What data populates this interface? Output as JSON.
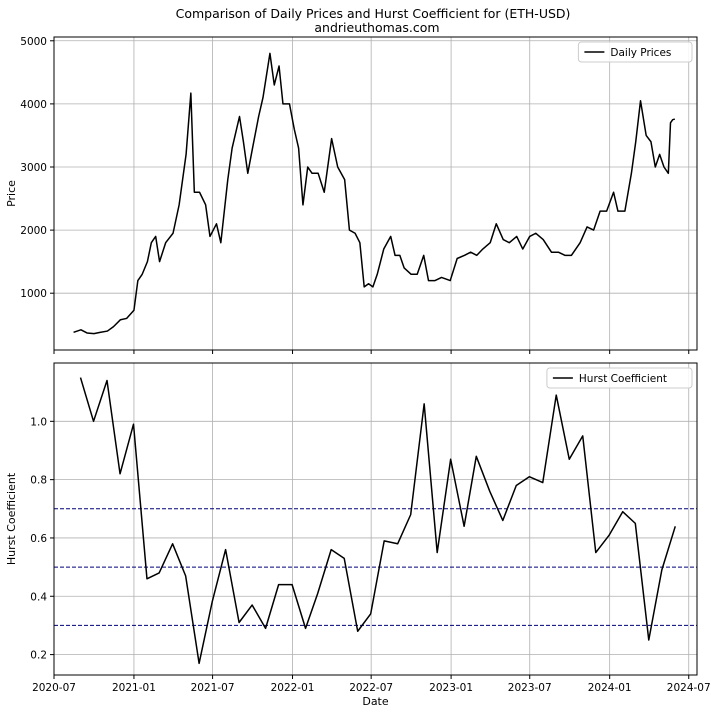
{
  "figure": {
    "title_line1": "Comparison of Daily Prices and Hurst Coefficient for (ETH-USD)",
    "title_line2": "andrieuthomas.com"
  },
  "chart_data": [
    {
      "type": "line",
      "ylabel": "Price",
      "ylim": [
        100,
        5060
      ],
      "yticks": [
        1000,
        2000,
        3000,
        4000,
        5000
      ],
      "xlim": [
        "2020-07-01",
        "2024-07-20"
      ],
      "grid": true,
      "legend_position": "top-right",
      "series": [
        {
          "name": "Daily Prices",
          "color": "#000000",
          "points": [
            [
              "2020-08-15",
              380
            ],
            [
              "2020-09-01",
              420
            ],
            [
              "2020-09-15",
              370
            ],
            [
              "2020-10-01",
              360
            ],
            [
              "2020-10-15",
              380
            ],
            [
              "2020-11-01",
              400
            ],
            [
              "2020-11-15",
              470
            ],
            [
              "2020-12-01",
              580
            ],
            [
              "2020-12-15",
              600
            ],
            [
              "2021-01-01",
              730
            ],
            [
              "2021-01-10",
              1200
            ],
            [
              "2021-01-20",
              1300
            ],
            [
              "2021-02-01",
              1500
            ],
            [
              "2021-02-10",
              1800
            ],
            [
              "2021-02-20",
              1900
            ],
            [
              "2021-03-01",
              1500
            ],
            [
              "2021-03-15",
              1800
            ],
            [
              "2021-04-01",
              1950
            ],
            [
              "2021-04-15",
              2400
            ],
            [
              "2021-05-01",
              3200
            ],
            [
              "2021-05-12",
              4170
            ],
            [
              "2021-05-20",
              2600
            ],
            [
              "2021-06-01",
              2600
            ],
            [
              "2021-06-15",
              2400
            ],
            [
              "2021-06-25",
              1900
            ],
            [
              "2021-07-10",
              2100
            ],
            [
              "2021-07-20",
              1800
            ],
            [
              "2021-08-05",
              2800
            ],
            [
              "2021-08-15",
              3300
            ],
            [
              "2021-09-01",
              3800
            ],
            [
              "2021-09-10",
              3400
            ],
            [
              "2021-09-20",
              2900
            ],
            [
              "2021-10-01",
              3300
            ],
            [
              "2021-10-15",
              3800
            ],
            [
              "2021-10-25",
              4100
            ],
            [
              "2021-11-10",
              4800
            ],
            [
              "2021-11-20",
              4300
            ],
            [
              "2021-12-01",
              4600
            ],
            [
              "2021-12-10",
              4000
            ],
            [
              "2021-12-25",
              4000
            ],
            [
              "2022-01-05",
              3600
            ],
            [
              "2022-01-15",
              3300
            ],
            [
              "2022-01-25",
              2400
            ],
            [
              "2022-02-05",
              3000
            ],
            [
              "2022-02-15",
              2900
            ],
            [
              "2022-03-01",
              2900
            ],
            [
              "2022-03-15",
              2600
            ],
            [
              "2022-04-01",
              3450
            ],
            [
              "2022-04-15",
              3000
            ],
            [
              "2022-05-01",
              2800
            ],
            [
              "2022-05-12",
              2000
            ],
            [
              "2022-05-25",
              1950
            ],
            [
              "2022-06-05",
              1800
            ],
            [
              "2022-06-15",
              1100
            ],
            [
              "2022-06-25",
              1150
            ],
            [
              "2022-07-05",
              1100
            ],
            [
              "2022-07-15",
              1300
            ],
            [
              "2022-07-30",
              1700
            ],
            [
              "2022-08-15",
              1900
            ],
            [
              "2022-08-25",
              1600
            ],
            [
              "2022-09-05",
              1600
            ],
            [
              "2022-09-15",
              1400
            ],
            [
              "2022-10-01",
              1300
            ],
            [
              "2022-10-15",
              1300
            ],
            [
              "2022-10-30",
              1600
            ],
            [
              "2022-11-10",
              1200
            ],
            [
              "2022-11-25",
              1200
            ],
            [
              "2022-12-10",
              1250
            ],
            [
              "2022-12-30",
              1200
            ],
            [
              "2023-01-15",
              1550
            ],
            [
              "2023-02-01",
              1600
            ],
            [
              "2023-02-15",
              1650
            ],
            [
              "2023-03-01",
              1600
            ],
            [
              "2023-03-15",
              1700
            ],
            [
              "2023-04-01",
              1800
            ],
            [
              "2023-04-15",
              2100
            ],
            [
              "2023-05-01",
              1850
            ],
            [
              "2023-05-15",
              1800
            ],
            [
              "2023-06-01",
              1900
            ],
            [
              "2023-06-15",
              1700
            ],
            [
              "2023-07-01",
              1900
            ],
            [
              "2023-07-15",
              1950
            ],
            [
              "2023-08-01",
              1850
            ],
            [
              "2023-08-20",
              1650
            ],
            [
              "2023-09-05",
              1650
            ],
            [
              "2023-09-20",
              1600
            ],
            [
              "2023-10-05",
              1600
            ],
            [
              "2023-10-25",
              1800
            ],
            [
              "2023-11-10",
              2050
            ],
            [
              "2023-11-25",
              2000
            ],
            [
              "2023-12-10",
              2300
            ],
            [
              "2023-12-25",
              2300
            ],
            [
              "2024-01-10",
              2600
            ],
            [
              "2024-01-20",
              2300
            ],
            [
              "2024-02-05",
              2300
            ],
            [
              "2024-02-20",
              2900
            ],
            [
              "2024-03-01",
              3400
            ],
            [
              "2024-03-12",
              4050
            ],
            [
              "2024-03-25",
              3500
            ],
            [
              "2024-04-05",
              3400
            ],
            [
              "2024-04-15",
              3000
            ],
            [
              "2024-04-25",
              3200
            ],
            [
              "2024-05-05",
              3000
            ],
            [
              "2024-05-15",
              2900
            ],
            [
              "2024-05-20",
              3700
            ],
            [
              "2024-05-25",
              3750
            ],
            [
              "2024-05-30",
              3760
            ]
          ]
        }
      ]
    },
    {
      "type": "line",
      "xlabel": "Date",
      "ylabel": "Hurst Coefficient",
      "ylim": [
        0.13,
        1.2
      ],
      "yticks": [
        0.2,
        0.4,
        0.6,
        0.8,
        1.0
      ],
      "xlim": [
        "2020-07-01",
        "2024-07-20"
      ],
      "xticks": [
        [
          "2020-07-01",
          "2020-07"
        ],
        [
          "2021-01-01",
          "2021-01"
        ],
        [
          "2021-07-01",
          "2021-07"
        ],
        [
          "2022-01-01",
          "2022-01"
        ],
        [
          "2022-07-01",
          "2022-07"
        ],
        [
          "2023-01-01",
          "2023-01"
        ],
        [
          "2023-07-01",
          "2023-07"
        ],
        [
          "2024-01-01",
          "2024-01"
        ],
        [
          "2024-07-01",
          "2024-07"
        ]
      ],
      "grid": true,
      "legend_position": "top-right",
      "reference_lines": [
        {
          "y": 0.3,
          "color": "#00007a",
          "style": "dashed"
        },
        {
          "y": 0.5,
          "color": "#00007a",
          "style": "dashed"
        },
        {
          "y": 0.7,
          "color": "#00007a",
          "style": "dashed"
        }
      ],
      "series": [
        {
          "name": "Hurst Coefficient",
          "color": "#000000",
          "points": [
            [
              "2020-08-31",
              1.15
            ],
            [
              "2020-09-30",
              1.0
            ],
            [
              "2020-10-31",
              1.14
            ],
            [
              "2020-11-30",
              0.82
            ],
            [
              "2020-12-31",
              0.99
            ],
            [
              "2021-01-31",
              0.46
            ],
            [
              "2021-02-28",
              0.48
            ],
            [
              "2021-03-31",
              0.58
            ],
            [
              "2021-04-30",
              0.47
            ],
            [
              "2021-05-31",
              0.17
            ],
            [
              "2021-06-30",
              0.38
            ],
            [
              "2021-07-31",
              0.56
            ],
            [
              "2021-08-31",
              0.31
            ],
            [
              "2021-09-30",
              0.37
            ],
            [
              "2021-10-31",
              0.29
            ],
            [
              "2021-11-30",
              0.44
            ],
            [
              "2021-12-31",
              0.44
            ],
            [
              "2022-01-31",
              0.29
            ],
            [
              "2022-02-28",
              0.41
            ],
            [
              "2022-03-31",
              0.56
            ],
            [
              "2022-04-30",
              0.53
            ],
            [
              "2022-05-31",
              0.28
            ],
            [
              "2022-06-30",
              0.34
            ],
            [
              "2022-07-31",
              0.59
            ],
            [
              "2022-08-31",
              0.58
            ],
            [
              "2022-09-30",
              0.68
            ],
            [
              "2022-10-31",
              1.06
            ],
            [
              "2022-11-30",
              0.55
            ],
            [
              "2022-12-31",
              0.87
            ],
            [
              "2023-01-31",
              0.64
            ],
            [
              "2023-02-28",
              0.88
            ],
            [
              "2023-03-31",
              0.76
            ],
            [
              "2023-04-30",
              0.66
            ],
            [
              "2023-05-31",
              0.78
            ],
            [
              "2023-06-30",
              0.81
            ],
            [
              "2023-07-31",
              0.79
            ],
            [
              "2023-08-31",
              1.09
            ],
            [
              "2023-09-30",
              0.87
            ],
            [
              "2023-10-31",
              0.95
            ],
            [
              "2023-11-30",
              0.55
            ],
            [
              "2023-12-31",
              0.61
            ],
            [
              "2024-01-31",
              0.69
            ],
            [
              "2024-02-29",
              0.65
            ],
            [
              "2024-03-31",
              0.25
            ],
            [
              "2024-04-30",
              0.49
            ],
            [
              "2024-05-31",
              0.64
            ]
          ]
        }
      ]
    }
  ]
}
